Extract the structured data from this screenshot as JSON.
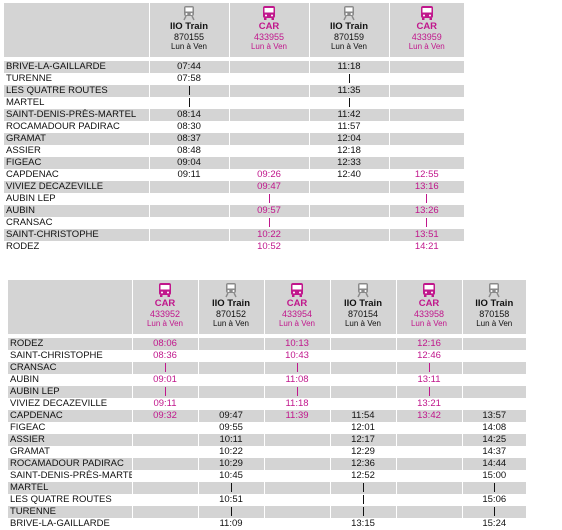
{
  "table1": {
    "headers": [
      {
        "mode": "lIO Train",
        "number": "870155",
        "days": "Lun à Ven",
        "icon": "train-icon",
        "type": "train"
      },
      {
        "mode": "CAR",
        "number": "433955",
        "days": "Lun à Ven",
        "icon": "bus-icon",
        "type": "car"
      },
      {
        "mode": "lIO Train",
        "number": "870159",
        "days": "Lun à Ven",
        "icon": "train-icon",
        "type": "train"
      },
      {
        "mode": "CAR",
        "number": "433959",
        "days": "Lun à Ven",
        "icon": "bus-icon",
        "type": "car"
      }
    ],
    "rows": [
      {
        "station": "BRIVE-LA-GAILLARDE",
        "times": [
          "07:44",
          "",
          "11:18",
          ""
        ]
      },
      {
        "station": "TURENNE",
        "times": [
          "07:58",
          "",
          "|",
          ""
        ]
      },
      {
        "station": "LES QUATRE ROUTES",
        "times": [
          "|",
          "",
          "11:35",
          ""
        ]
      },
      {
        "station": "MARTEL",
        "times": [
          "|",
          "",
          "|",
          ""
        ]
      },
      {
        "station": "SAINT-DENIS-PRÈS-MARTEL",
        "times": [
          "08:14",
          "",
          "11:42",
          ""
        ]
      },
      {
        "station": "ROCAMADOUR PADIRAC",
        "times": [
          "08:30",
          "",
          "11:57",
          ""
        ]
      },
      {
        "station": "GRAMAT",
        "times": [
          "08:37",
          "",
          "12:04",
          ""
        ]
      },
      {
        "station": "ASSIER",
        "times": [
          "08:48",
          "",
          "12:18",
          ""
        ]
      },
      {
        "station": "FIGEAC",
        "times": [
          "09:04",
          "",
          "12:33",
          ""
        ]
      },
      {
        "station": "CAPDENAC",
        "times": [
          "09:11",
          "09:26",
          "12:40",
          "12:55"
        ]
      },
      {
        "station": "VIVIEZ DECAZEVILLE",
        "times": [
          "",
          "09:47",
          "",
          "13:16"
        ]
      },
      {
        "station": "AUBIN LEP",
        "times": [
          "",
          "|",
          "",
          "|"
        ]
      },
      {
        "station": "AUBIN",
        "times": [
          "",
          "09:57",
          "",
          "13:26"
        ]
      },
      {
        "station": "CRANSAC",
        "times": [
          "",
          "|",
          "",
          "|"
        ]
      },
      {
        "station": "SAINT-CHRISTOPHE",
        "times": [
          "",
          "10:22",
          "",
          "13:51"
        ]
      },
      {
        "station": "RODEZ",
        "times": [
          "",
          "10:52",
          "",
          "14:21"
        ]
      }
    ]
  },
  "table2": {
    "headers": [
      {
        "mode": "CAR",
        "number": "433952",
        "days": "Lun à Ven",
        "icon": "bus-icon",
        "type": "car"
      },
      {
        "mode": "lIO Train",
        "number": "870152",
        "days": "Lun à Ven",
        "icon": "train-icon",
        "type": "train"
      },
      {
        "mode": "CAR",
        "number": "433954",
        "days": "Lun à Ven",
        "icon": "bus-icon",
        "type": "car"
      },
      {
        "mode": "lIO Train",
        "number": "870154",
        "days": "Lun à Ven",
        "icon": "train-icon",
        "type": "train"
      },
      {
        "mode": "CAR",
        "number": "433958",
        "days": "Lun à Ven",
        "icon": "bus-icon",
        "type": "car"
      },
      {
        "mode": "lIO Train",
        "number": "870158",
        "days": "Lun à Ven",
        "icon": "train-icon",
        "type": "train"
      }
    ],
    "rows": [
      {
        "station": "RODEZ",
        "times": [
          "08:06",
          "",
          "10:13",
          "",
          "12:16",
          ""
        ]
      },
      {
        "station": "SAINT-CHRISTOPHE",
        "times": [
          "08:36",
          "",
          "10:43",
          "",
          "12:46",
          ""
        ]
      },
      {
        "station": "CRANSAC",
        "times": [
          "|",
          "",
          "|",
          "",
          "|",
          ""
        ]
      },
      {
        "station": "AUBIN",
        "times": [
          "09:01",
          "",
          "11:08",
          "",
          "13:11",
          ""
        ]
      },
      {
        "station": "AUBIN LEP",
        "times": [
          "|",
          "",
          "|",
          "",
          "|",
          ""
        ]
      },
      {
        "station": "VIVIEZ DECAZEVILLE",
        "times": [
          "09:11",
          "",
          "11:18",
          "",
          "13:21",
          ""
        ]
      },
      {
        "station": "CAPDENAC",
        "times": [
          "09:32",
          "09:47",
          "11:39",
          "11:54",
          "13:42",
          "13:57"
        ]
      },
      {
        "station": "FIGEAC",
        "times": [
          "",
          "09:55",
          "",
          "12:01",
          "",
          "14:08"
        ]
      },
      {
        "station": "ASSIER",
        "times": [
          "",
          "10:11",
          "",
          "12:17",
          "",
          "14:25"
        ]
      },
      {
        "station": "GRAMAT",
        "times": [
          "",
          "10:22",
          "",
          "12:29",
          "",
          "14:37"
        ]
      },
      {
        "station": "ROCAMADOUR PADIRAC",
        "times": [
          "",
          "10:29",
          "",
          "12:36",
          "",
          "14:44"
        ]
      },
      {
        "station": "SAINT-DENIS-PRÈS-MARTEL",
        "times": [
          "",
          "10:45",
          "",
          "12:52",
          "",
          "15:00"
        ]
      },
      {
        "station": "MARTEL",
        "times": [
          "",
          "|",
          "",
          "|",
          "",
          "|"
        ]
      },
      {
        "station": "LES QUATRE ROUTES",
        "times": [
          "",
          "10:51",
          "",
          "|",
          "",
          "15:06"
        ]
      },
      {
        "station": "TURENNE",
        "times": [
          "",
          "|",
          "",
          "|",
          "",
          "|"
        ]
      },
      {
        "station": "BRIVE-LA-GAILLARDE",
        "times": [
          "",
          "11:09",
          "",
          "13:15",
          "",
          "15:24"
        ]
      }
    ]
  },
  "colors": {
    "car": "#c0178c",
    "train": "#111111",
    "shade": "#d4d4d4",
    "icon_train": "#8a8a8a"
  }
}
